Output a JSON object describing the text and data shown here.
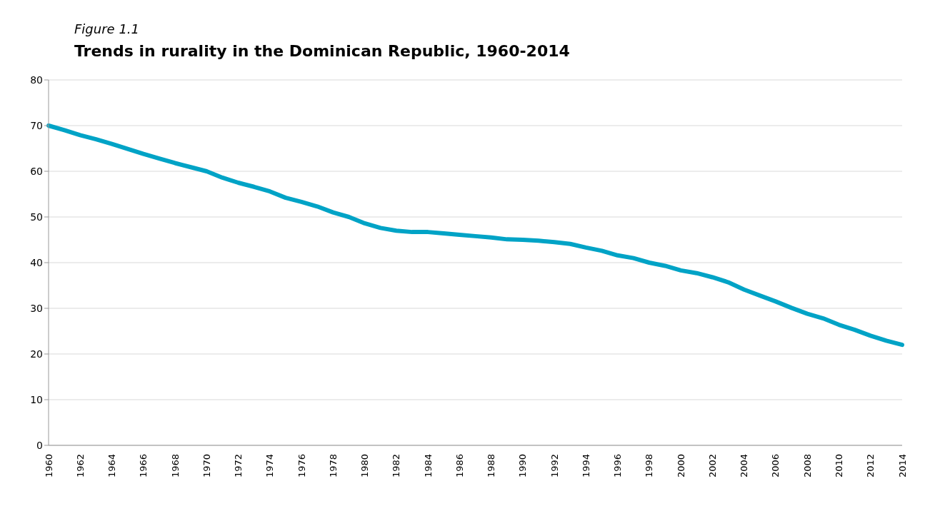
{
  "chart_data": {
    "type": "line",
    "subtitle": "Figure 1.1",
    "title": "Trends in rurality in the Dominican Republic, 1960-2014",
    "categories": [
      "1960",
      null,
      "1962",
      null,
      "1964",
      null,
      "1966",
      null,
      "1968",
      null,
      "1970",
      null,
      "1972",
      null,
      "1974",
      null,
      "1976",
      null,
      "1978",
      null,
      "1980",
      null,
      "1982",
      null,
      "1984",
      null,
      "1986",
      null,
      "1988",
      null,
      "1990",
      null,
      "1992",
      null,
      "1994",
      null,
      "1996",
      null,
      "1998",
      null,
      "2000",
      null,
      "2002",
      null,
      "2004",
      null,
      "2006",
      null,
      "2008",
      null,
      "2010",
      null,
      "2012",
      null,
      "2014"
    ],
    "series": [
      {
        "color": "#00a3c6",
        "values": [
          70,
          69,
          67.9,
          67,
          66,
          64.9,
          63.8,
          62.8,
          61.8,
          60.9,
          60,
          58.6,
          57.5,
          56.6,
          55.6,
          54.2,
          53.3,
          52.3,
          51,
          50,
          48.6,
          47.6,
          47,
          46.7,
          46.7,
          46.4,
          46.1,
          45.8,
          45.5,
          45.1,
          45,
          44.8,
          44.5,
          44.1,
          43.3,
          42.6,
          41.6,
          41,
          40,
          39.3,
          38.3,
          37.7,
          36.8,
          35.7,
          34.1,
          32.8,
          31.5,
          30.1,
          28.8,
          27.8,
          26.4,
          25.3,
          24,
          22.9,
          22
        ]
      }
    ],
    "ylim": [
      0,
      80
    ],
    "yticks": [
      0,
      10,
      20,
      30,
      40,
      50,
      60,
      70,
      80
    ],
    "grid": "y",
    "legend": false,
    "marker": "none",
    "line_style": "solid"
  }
}
